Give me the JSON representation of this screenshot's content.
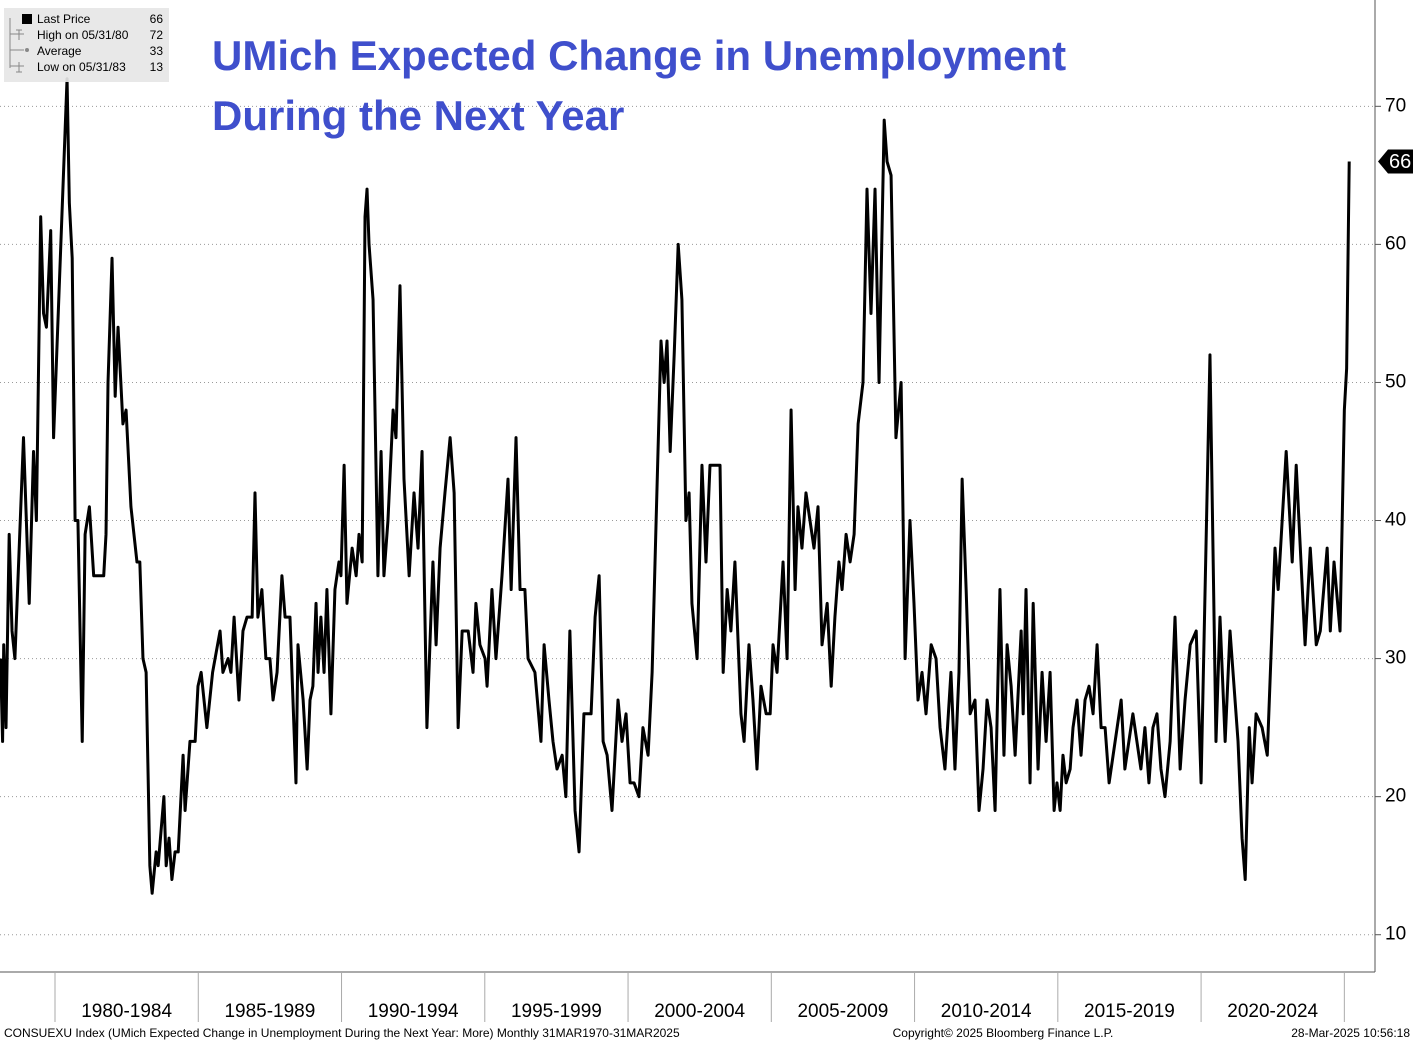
{
  "chart_data": {
    "type": "line",
    "title": "UMich Expected Change in Unemployment During the Next Year",
    "stats": [
      {
        "label": "Last Price",
        "value": 66
      },
      {
        "label": "High on 05/31/80",
        "value": 72
      },
      {
        "label": "Average",
        "value": 33
      },
      {
        "label": "Low on 05/31/83",
        "value": 13
      }
    ],
    "footer_left": "CONSUEXU Index (UMich Expected Change in Unemployment During the Next Year: More)  Monthly 31MAR1970-31MAR2025",
    "footer_center": "Copyright© 2025 Bloomberg Finance L.P.",
    "footer_right": "28-Mar-2025 10:56:18",
    "xlim": [
      1978.08,
      2026.07
    ],
    "xgrid": [
      1980,
      1985,
      1990,
      1995,
      2000,
      2005,
      2010,
      2015,
      2020,
      2025
    ],
    "xticks": [
      {
        "value": 1982.5,
        "label": "1980-1984"
      },
      {
        "value": 1987.5,
        "label": "1985-1989"
      },
      {
        "value": 1992.5,
        "label": "1990-1994"
      },
      {
        "value": 1997.5,
        "label": "1995-1999"
      },
      {
        "value": 2002.5,
        "label": "2000-2004"
      },
      {
        "value": 2007.5,
        "label": "2005-2009"
      },
      {
        "value": 2012.5,
        "label": "2010-2014"
      },
      {
        "value": 2017.5,
        "label": "2015-2019"
      },
      {
        "value": 2022.5,
        "label": "2020-2024"
      }
    ],
    "ylim": [
      7.3,
      77.7
    ],
    "yticks": [
      10,
      20,
      30,
      40,
      50,
      60,
      70
    ],
    "grid": true,
    "x": [
      1978.1,
      1978.17,
      1978.21,
      1978.29,
      1978.4,
      1978.5,
      1978.6,
      1978.9,
      1979.1,
      1979.25,
      1979.35,
      1979.5,
      1979.6,
      1979.7,
      1979.85,
      1979.95,
      1980.42,
      1980.5,
      1980.6,
      1980.7,
      1980.8,
      1980.95,
      1981.05,
      1981.2,
      1981.35,
      1981.7,
      1981.78,
      1981.85,
      1981.99,
      1982.1,
      1982.2,
      1982.37,
      1982.48,
      1982.65,
      1982.86,
      1982.96,
      1983.07,
      1983.18,
      1983.31,
      1983.39,
      1983.53,
      1983.6,
      1983.8,
      1983.88,
      1983.98,
      1984.08,
      1984.19,
      1984.3,
      1984.47,
      1984.54,
      1984.71,
      1984.89,
      1984.99,
      1985.1,
      1985.3,
      1985.5,
      1985.76,
      1985.86,
      1986.04,
      1986.14,
      1986.25,
      1986.42,
      1986.56,
      1986.7,
      1986.88,
      1986.98,
      1987.08,
      1987.22,
      1987.36,
      1987.5,
      1987.61,
      1987.75,
      1987.92,
      1988.03,
      1988.2,
      1988.41,
      1988.48,
      1988.66,
      1988.8,
      1988.9,
      1989.0,
      1989.11,
      1989.18,
      1989.28,
      1989.39,
      1989.49,
      1989.63,
      1989.77,
      1989.91,
      1989.98,
      1990.09,
      1990.19,
      1990.37,
      1990.51,
      1990.61,
      1990.72,
      1990.82,
      1990.89,
      1990.96,
      1991.1,
      1991.27,
      1991.38,
      1991.48,
      1991.62,
      1991.8,
      1991.9,
      1992.04,
      1992.18,
      1992.36,
      1992.53,
      1992.67,
      1992.81,
      1992.98,
      1993.19,
      1993.3,
      1993.44,
      1993.61,
      1993.79,
      1993.93,
      1994.07,
      1994.21,
      1994.42,
      1994.59,
      1994.69,
      1994.83,
      1995.01,
      1995.08,
      1995.25,
      1995.39,
      1995.6,
      1995.81,
      1995.92,
      1996.09,
      1996.23,
      1996.4,
      1996.51,
      1996.75,
      1996.96,
      1997.07,
      1997.24,
      1997.38,
      1997.52,
      1997.7,
      1997.83,
      1997.97,
      1998.15,
      1998.29,
      1998.46,
      1998.71,
      1998.85,
      1998.99,
      1999.13,
      1999.27,
      1999.44,
      1999.65,
      1999.79,
      1999.93,
      2000.07,
      2000.21,
      2000.38,
      2000.52,
      2000.7,
      2000.84,
      2000.98,
      2001.15,
      2001.26,
      2001.36,
      2001.47,
      2001.61,
      2001.75,
      2001.88,
      2002.02,
      2002.13,
      2002.23,
      2002.41,
      2002.58,
      2002.72,
      2002.86,
      2003.04,
      2003.21,
      2003.32,
      2003.46,
      2003.59,
      2003.73,
      2003.94,
      2004.05,
      2004.22,
      2004.36,
      2004.5,
      2004.64,
      2004.82,
      2004.96,
      2005.06,
      2005.2,
      2005.41,
      2005.55,
      2005.69,
      2005.83,
      2005.93,
      2006.07,
      2006.21,
      2006.35,
      2006.49,
      2006.63,
      2006.77,
      2006.95,
      2007.09,
      2007.22,
      2007.36,
      2007.47,
      2007.61,
      2007.75,
      2007.89,
      2008.03,
      2008.2,
      2008.34,
      2008.48,
      2008.62,
      2008.76,
      2008.94,
      2009.04,
      2009.18,
      2009.35,
      2009.53,
      2009.67,
      2009.84,
      2009.98,
      2010.12,
      2010.26,
      2010.4,
      2010.58,
      2010.75,
      2010.89,
      2011.06,
      2011.27,
      2011.41,
      2011.55,
      2011.66,
      2011.8,
      2011.94,
      2012.11,
      2012.25,
      2012.39,
      2012.53,
      2012.67,
      2012.81,
      2012.98,
      2013.12,
      2013.23,
      2013.37,
      2013.51,
      2013.72,
      2013.79,
      2013.89,
      2014.03,
      2014.14,
      2014.31,
      2014.45,
      2014.59,
      2014.73,
      2014.87,
      2014.97,
      2015.08,
      2015.18,
      2015.29,
      2015.43,
      2015.53,
      2015.67,
      2015.81,
      2015.95,
      2016.09,
      2016.23,
      2016.37,
      2016.51,
      2016.65,
      2016.79,
      2016.93,
      2017.07,
      2017.21,
      2017.34,
      2017.48,
      2017.62,
      2017.76,
      2017.9,
      2018.04,
      2018.18,
      2018.32,
      2018.46,
      2018.6,
      2018.74,
      2018.92,
      2019.09,
      2019.27,
      2019.44,
      2019.62,
      2019.83,
      2020.0,
      2020.31,
      2020.52,
      2020.66,
      2020.84,
      2021.01,
      2021.29,
      2021.43,
      2021.54,
      2021.68,
      2021.78,
      2021.92,
      2022.13,
      2022.31,
      2022.58,
      2022.69,
      2022.97,
      2023.18,
      2023.32,
      2023.63,
      2023.81,
      2024.02,
      2024.16,
      2024.4,
      2024.51,
      2024.64,
      2024.85,
      2025.0,
      2025.08,
      2025.17
    ],
    "series": [
      {
        "color": "#000000",
        "values": [
          30,
          24,
          31,
          25,
          39,
          32,
          30,
          46,
          34,
          45,
          40,
          62,
          55,
          54,
          61,
          46,
          72,
          63,
          59,
          40,
          40,
          24,
          39,
          41,
          36,
          36,
          39,
          50,
          59,
          49,
          54,
          47,
          48,
          41,
          37,
          37,
          30,
          29,
          15,
          13,
          16,
          15,
          20,
          15,
          17,
          14,
          16,
          16,
          23,
          19,
          24,
          24,
          28,
          29,
          25,
          29,
          32,
          29,
          30,
          29,
          33,
          27,
          32,
          33,
          33,
          42,
          33,
          35,
          30,
          30,
          27,
          29,
          36,
          33,
          33,
          21,
          31,
          27,
          22,
          27,
          28,
          34,
          29,
          33,
          29,
          35,
          26,
          35,
          37,
          36,
          44,
          34,
          38,
          36,
          39,
          37,
          62,
          64,
          60,
          56,
          36,
          45,
          36,
          40,
          48,
          46,
          57,
          43,
          36,
          42,
          38,
          45,
          25,
          37,
          31,
          38,
          42,
          46,
          42,
          25,
          32,
          32,
          29,
          34,
          31,
          30,
          28,
          35,
          30,
          36,
          43,
          35,
          46,
          35,
          35,
          30,
          29,
          24,
          31,
          27,
          24,
          22,
          23,
          20,
          32,
          19,
          16,
          26,
          26,
          33,
          36,
          24,
          23,
          19,
          27,
          24,
          26,
          21,
          21,
          20,
          25,
          23,
          29,
          40,
          53,
          50,
          53,
          45,
          52,
          60,
          56,
          40,
          42,
          34,
          30,
          44,
          37,
          44,
          44,
          44,
          29,
          35,
          32,
          37,
          26,
          24,
          31,
          27,
          22,
          28,
          26,
          26,
          31,
          29,
          37,
          30,
          48,
          35,
          41,
          38,
          42,
          40,
          38,
          41,
          31,
          34,
          28,
          33,
          37,
          35,
          39,
          37,
          39,
          47,
          50,
          64,
          55,
          64,
          50,
          69,
          66,
          65,
          46,
          50,
          30,
          40,
          34,
          27,
          29,
          26,
          31,
          30,
          25,
          22,
          29,
          22,
          29,
          43,
          35,
          26,
          27,
          19,
          22,
          27,
          25,
          19,
          35,
          23,
          31,
          28,
          23,
          32,
          26,
          35,
          21,
          34,
          22,
          29,
          24,
          29,
          19,
          21,
          19,
          23,
          21,
          22,
          25,
          27,
          23,
          27,
          28,
          26,
          31,
          25,
          25,
          21,
          23,
          25,
          27,
          22,
          24,
          26,
          24,
          22,
          25,
          21,
          25,
          26,
          22,
          20,
          24,
          33,
          22,
          27,
          31,
          32,
          21,
          52,
          24,
          33,
          24,
          32,
          24,
          17,
          14,
          25,
          21,
          26,
          25,
          23,
          38,
          35,
          45,
          37,
          44,
          31,
          38,
          31,
          32,
          38,
          32,
          37,
          32,
          48,
          51,
          66
        ]
      }
    ]
  }
}
